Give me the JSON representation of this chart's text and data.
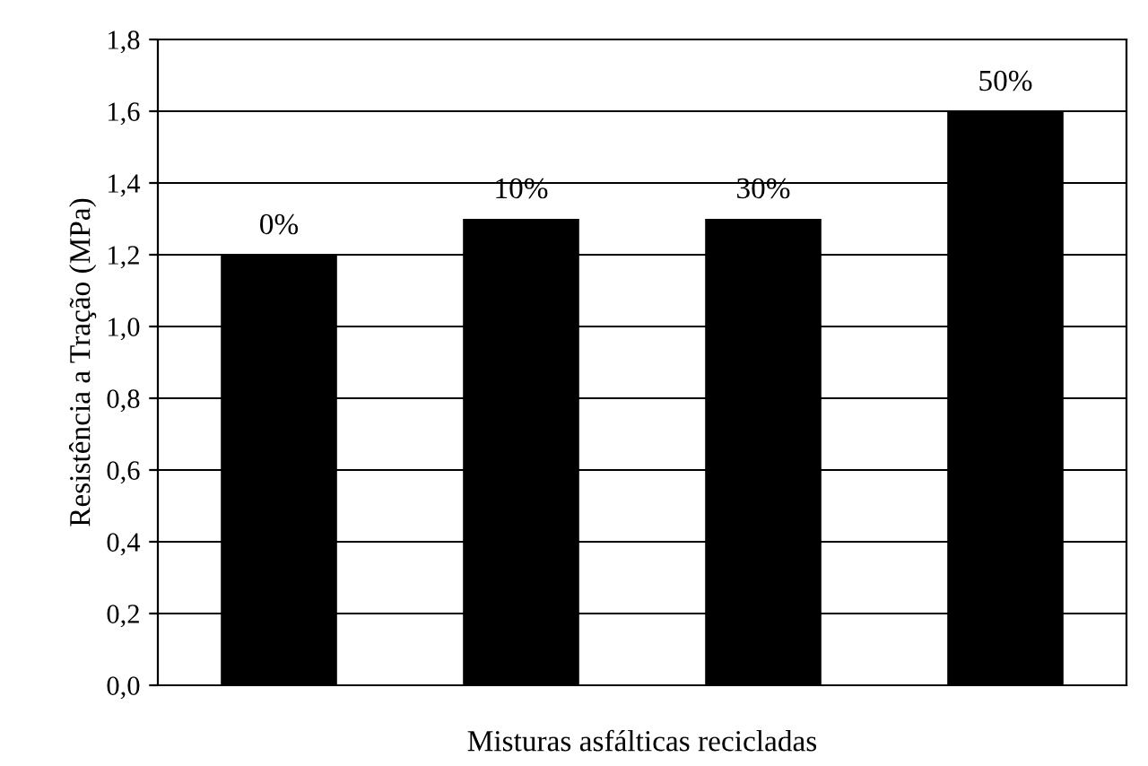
{
  "chart_data": {
    "type": "bar",
    "xlabel": "Misturas asfálticas recicladas",
    "ylabel": "Resistência a Tração (MPa)",
    "categories": [
      "0%",
      "10%",
      "30%",
      "50%"
    ],
    "values": [
      1.2,
      1.3,
      1.3,
      1.6
    ],
    "color": "#000000",
    "ylim": [
      0,
      1.8
    ],
    "yticks": [
      {
        "value": 0,
        "label": "0,0"
      },
      {
        "value": 0.2,
        "label": "0,2"
      },
      {
        "value": 0.4,
        "label": "0,4"
      },
      {
        "value": 0.6,
        "label": "0,6"
      },
      {
        "value": 0.8,
        "label": "0,8"
      },
      {
        "value": 1.0,
        "label": "1,0"
      },
      {
        "value": 1.2,
        "label": "1,2"
      },
      {
        "value": 1.4,
        "label": "1,4"
      },
      {
        "value": 1.6,
        "label": "1,6"
      },
      {
        "value": 1.8,
        "label": "1,8"
      }
    ],
    "grid": "y",
    "legend": false
  }
}
